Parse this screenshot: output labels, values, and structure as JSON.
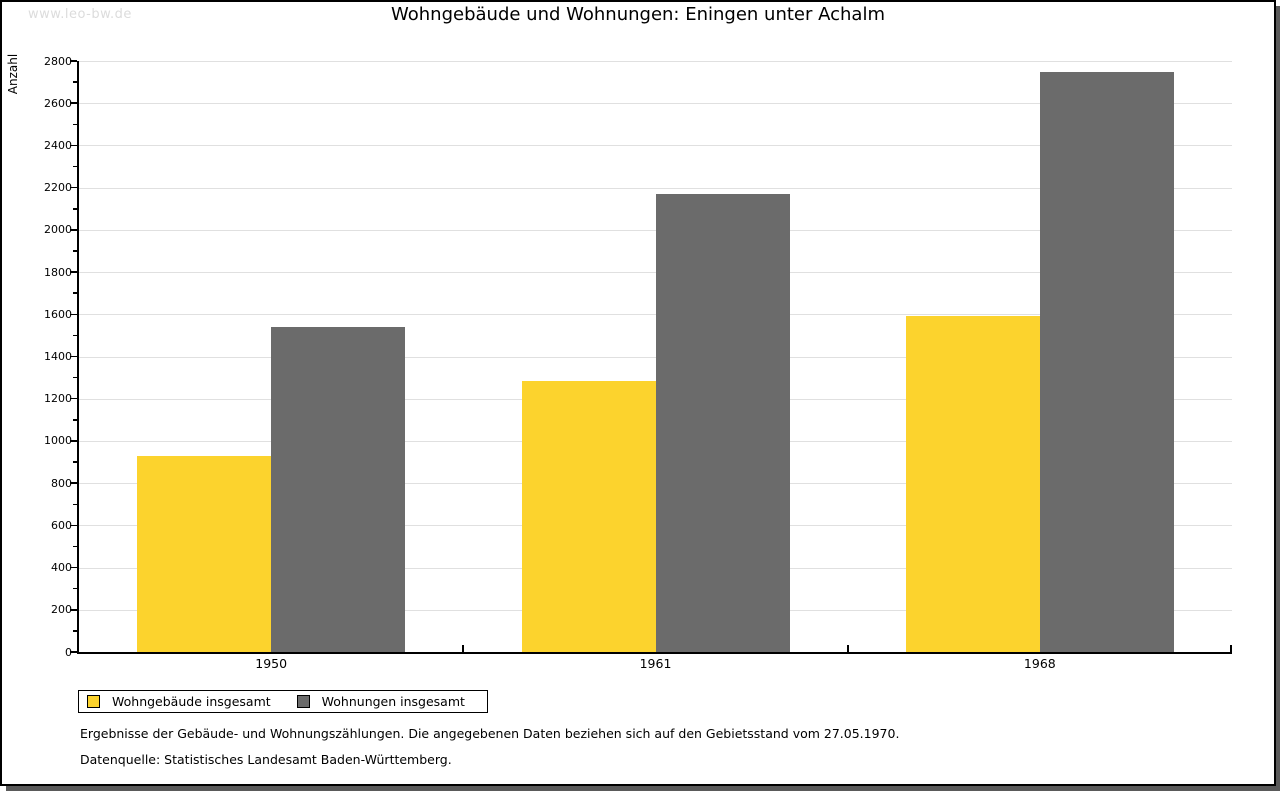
{
  "page": {
    "watermark": "www.leo-bw.de",
    "title": "Wohngebäude und Wohnungen: Eningen unter Achalm",
    "footnote": "Ergebnisse der Gebäude- und Wohnungszählungen. Die angegebenen Daten beziehen sich auf den Gebietsstand vom 27.05.1970.",
    "source": "Datenquelle: Statistisches Landesamt Baden-Württemberg."
  },
  "chart_data": {
    "type": "bar",
    "title": "Wohngebäude und Wohnungen: Eningen unter Achalm",
    "categories": [
      "1950",
      "1961",
      "1968"
    ],
    "series": [
      {
        "name": "Wohngebäude insgesamt",
        "color": "#FCD32D",
        "values": [
          930,
          1285,
          1590
        ]
      },
      {
        "name": "Wohnungen insgesamt",
        "color": "#6B6B6B",
        "values": [
          1540,
          2170,
          2750
        ]
      }
    ],
    "xlabel": "",
    "ylabel": "Anzahl",
    "ylim": [
      0,
      2800
    ],
    "yticks": [
      0,
      200,
      400,
      600,
      800,
      1000,
      1200,
      1400,
      1600,
      1800,
      2000,
      2200,
      2400,
      2600,
      2800
    ],
    "minor_tick_step": 100,
    "grid": true,
    "gridline_color": "#E0E0E0",
    "legend_position": "bottom-left"
  }
}
